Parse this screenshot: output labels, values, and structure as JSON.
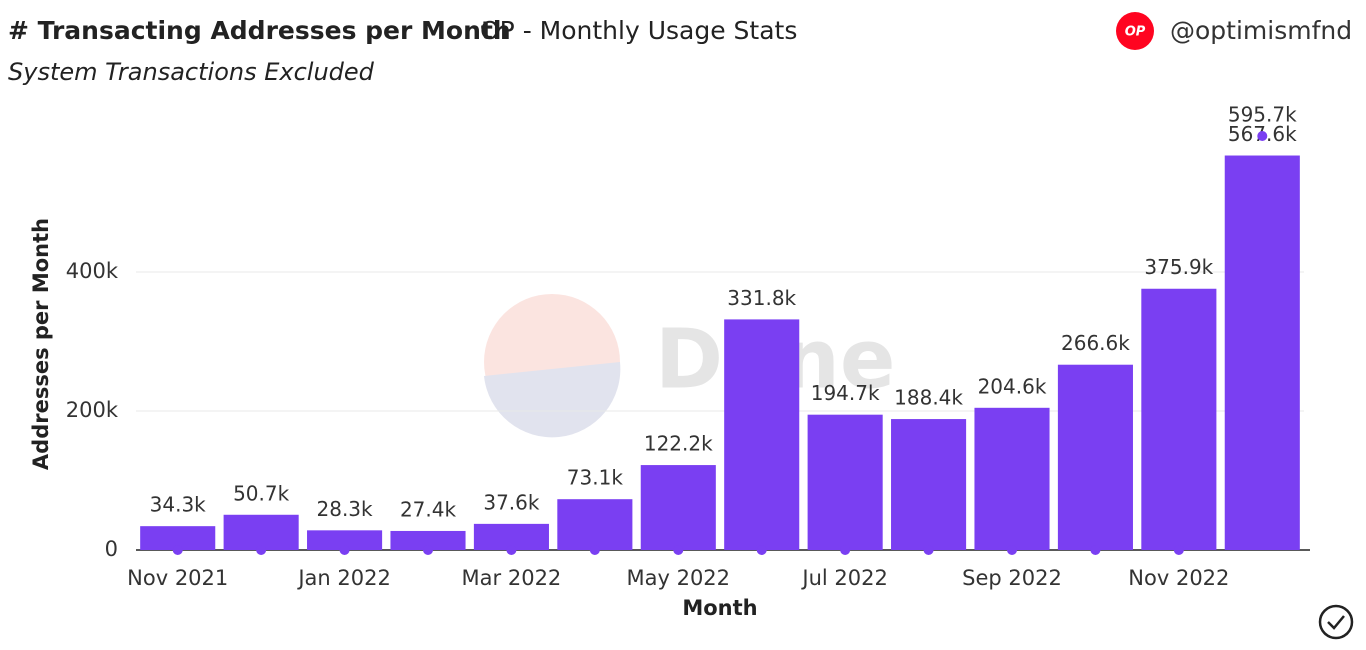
{
  "header": {
    "title": "# Transacting Addresses per Month",
    "subtitle": "OP - Monthly Usage Stats",
    "note": "System Transactions Excluded",
    "logo": "OP",
    "account": "@optimismfnd",
    "watermark": "Dune"
  },
  "chart_data": {
    "type": "bar",
    "x_label": "Month",
    "y_label": "Addresses per Month",
    "categories": [
      "Nov 2021",
      null,
      "Jan 2022",
      null,
      "Mar 2022",
      null,
      "May 2022",
      null,
      "Jul 2022",
      null,
      "Sep 2022",
      null,
      "Nov 2022",
      null
    ],
    "series": [
      {
        "color": "#7a3ff2",
        "values": [
          34300,
          50700,
          28300,
          27400,
          37600,
          73100,
          122200,
          331800,
          194700,
          188400,
          204600,
          266600,
          375900,
          567600
        ],
        "value_labels": [
          "34.3k",
          "50.7k",
          "28.3k",
          "27.4k",
          "37.6k",
          "73.1k",
          "122.2k",
          "331.8k",
          "194.7k",
          "188.4k",
          "204.6k",
          "266.6k",
          "375.9k",
          "567.6k"
        ]
      },
      {
        "color": "#7a3ff2",
        "values": [
          0,
          0,
          0,
          0,
          0,
          0,
          0,
          0,
          0,
          0,
          0,
          0,
          0,
          595700
        ],
        "value_labels": [
          null,
          null,
          null,
          null,
          null,
          null,
          null,
          null,
          null,
          null,
          null,
          null,
          null,
          "595.7k"
        ]
      }
    ],
    "ylim": [
      0,
      600000
    ],
    "yticks": [
      0,
      {
        "value": 200000,
        "label": "200k"
      },
      {
        "value": 400000,
        "label": "400k"
      }
    ],
    "grid": true
  }
}
